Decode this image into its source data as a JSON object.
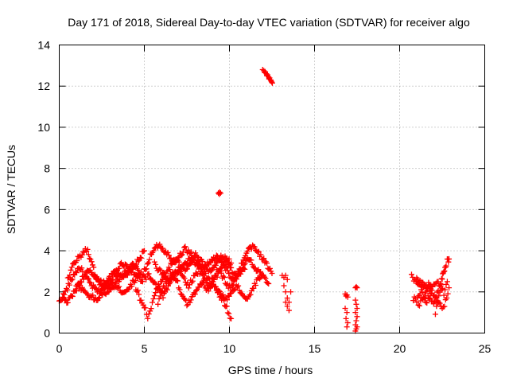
{
  "chart_data": {
    "type": "scatter",
    "title": "Day 171 of 2018, Sidereal Day-to-day VTEC variation (SDTVAR) for receiver algo",
    "xlabel": "GPS time / hours",
    "ylabel": "SDTVAR / TECUs",
    "xlim": [
      0,
      25
    ],
    "ylim": [
      0,
      14
    ],
    "xticks": [
      0,
      5,
      10,
      15,
      20,
      25
    ],
    "yticks": [
      0,
      2,
      4,
      6,
      8,
      10,
      12,
      14
    ],
    "xtick_labels": [
      "0",
      "5",
      "10",
      "15",
      "20",
      "25"
    ],
    "ytick_labels": [
      "0",
      "2",
      "4",
      "6",
      "8",
      "10",
      "12",
      "14"
    ],
    "grid": true,
    "marker": "+",
    "color": "#ff0000",
    "series": [
      {
        "name": "tracks_dense",
        "tracks": [
          [
            [
              0.0,
              1.5
            ],
            [
              0.3,
              1.9
            ],
            [
              0.6,
              2.4
            ],
            [
              0.9,
              2.9
            ],
            [
              1.2,
              3.2
            ],
            [
              1.5,
              2.8
            ],
            [
              1.9,
              2.3
            ],
            [
              2.3,
              2.0
            ],
            [
              2.7,
              2.3
            ],
            [
              3.1,
              2.7
            ],
            [
              3.5,
              2.9
            ],
            [
              3.9,
              2.7
            ],
            [
              4.3,
              3.1
            ],
            [
              4.7,
              3.6
            ],
            [
              5.0,
              4.0
            ]
          ],
          [
            [
              0.2,
              1.7
            ],
            [
              0.5,
              1.5
            ],
            [
              0.9,
              2.0
            ],
            [
              1.3,
              2.6
            ],
            [
              1.7,
              3.0
            ],
            [
              2.1,
              2.8
            ],
            [
              2.5,
              2.4
            ],
            [
              2.9,
              2.6
            ],
            [
              3.3,
              3.0
            ],
            [
              3.7,
              3.4
            ],
            [
              4.1,
              3.2
            ],
            [
              4.5,
              2.8
            ],
            [
              4.9,
              2.5
            ]
          ],
          [
            [
              0.5,
              2.6
            ],
            [
              0.8,
              3.3
            ],
            [
              1.1,
              3.6
            ],
            [
              1.4,
              3.9
            ],
            [
              1.6,
              4.1
            ],
            [
              1.9,
              3.4
            ],
            [
              2.2,
              2.6
            ],
            [
              2.5,
              2.2
            ],
            [
              2.8,
              1.9
            ],
            [
              3.1,
              2.2
            ],
            [
              3.5,
              2.6
            ],
            [
              3.9,
              3.0
            ],
            [
              4.3,
              3.4
            ],
            [
              4.7,
              3.0
            ],
            [
              5.1,
              2.6
            ]
          ],
          [
            [
              1.0,
              2.4
            ],
            [
              1.4,
              2.1
            ],
            [
              1.8,
              1.8
            ],
            [
              2.2,
              1.6
            ],
            [
              2.6,
              2.0
            ],
            [
              3.0,
              2.4
            ],
            [
              3.4,
              2.2
            ],
            [
              3.8,
              2.0
            ],
            [
              4.2,
              2.3
            ],
            [
              4.6,
              2.8
            ]
          ],
          [
            [
              4.5,
              2.2
            ],
            [
              4.8,
              1.6
            ],
            [
              5.0,
              1.3
            ],
            [
              5.2,
              0.8
            ],
            [
              5.4,
              1.2
            ],
            [
              5.6,
              1.8
            ],
            [
              5.9,
              2.4
            ],
            [
              6.2,
              2.8
            ],
            [
              6.5,
              2.5
            ],
            [
              6.9,
              2.9
            ],
            [
              7.3,
              3.3
            ],
            [
              7.7,
              3.6
            ],
            [
              8.1,
              3.3
            ],
            [
              8.5,
              3.1
            ],
            [
              8.9,
              3.5
            ],
            [
              9.3,
              3.7
            ],
            [
              9.6,
              3.4
            ],
            [
              9.9,
              3.0
            ],
            [
              10.2,
              2.6
            ],
            [
              10.5,
              2.8
            ],
            [
              10.8,
              3.2
            ],
            [
              11.1,
              3.6
            ],
            [
              11.4,
              3.3
            ],
            [
              11.7,
              3.0
            ],
            [
              12.0,
              2.7
            ],
            [
              12.3,
              2.4
            ]
          ],
          [
            [
              5.0,
              3.0
            ],
            [
              5.3,
              3.6
            ],
            [
              5.6,
              4.2
            ],
            [
              5.9,
              4.3
            ],
            [
              6.2,
              4.0
            ],
            [
              6.5,
              3.7
            ],
            [
              6.8,
              3.5
            ],
            [
              7.1,
              3.8
            ],
            [
              7.4,
              4.1
            ],
            [
              7.7,
              3.9
            ],
            [
              8.0,
              3.6
            ],
            [
              8.3,
              3.2
            ],
            [
              8.6,
              2.8
            ],
            [
              8.9,
              2.5
            ],
            [
              9.2,
              2.9
            ],
            [
              9.5,
              3.2
            ],
            [
              9.8,
              3.5
            ],
            [
              10.1,
              3.1
            ],
            [
              10.4,
              2.8
            ],
            [
              10.7,
              3.3
            ],
            [
              11.0,
              3.9
            ],
            [
              11.3,
              4.2
            ],
            [
              11.6,
              4.0
            ],
            [
              11.9,
              3.7
            ],
            [
              12.2,
              3.3
            ],
            [
              12.5,
              2.9
            ]
          ],
          [
            [
              5.2,
              2.9
            ],
            [
              5.5,
              2.6
            ],
            [
              5.8,
              2.2
            ],
            [
              6.1,
              1.8
            ],
            [
              6.4,
              2.2
            ],
            [
              6.7,
              2.8
            ],
            [
              7.0,
              3.1
            ],
            [
              7.3,
              2.7
            ],
            [
              7.6,
              2.3
            ],
            [
              7.9,
              2.7
            ],
            [
              8.2,
              3.0
            ],
            [
              8.5,
              2.7
            ],
            [
              8.8,
              2.3
            ],
            [
              9.1,
              2.6
            ],
            [
              9.4,
              3.0
            ],
            [
              9.7,
              2.6
            ],
            [
              10.0,
              2.2
            ],
            [
              10.3,
              2.5
            ],
            [
              10.6,
              2.9
            ],
            [
              10.9,
              3.1
            ]
          ],
          [
            [
              5.6,
              3.4
            ],
            [
              5.9,
              3.0
            ],
            [
              6.2,
              2.8
            ],
            [
              6.5,
              3.2
            ],
            [
              6.8,
              3.6
            ],
            [
              7.1,
              3.3
            ],
            [
              7.4,
              3.0
            ],
            [
              7.7,
              3.3
            ],
            [
              8.0,
              3.8
            ],
            [
              8.3,
              3.5
            ],
            [
              8.6,
              3.2
            ],
            [
              8.9,
              3.0
            ],
            [
              9.2,
              3.4
            ],
            [
              9.5,
              3.7
            ],
            [
              9.8,
              3.6
            ],
            [
              10.1,
              3.4
            ]
          ],
          [
            [
              5.8,
              1.5
            ],
            [
              6.0,
              2.0
            ],
            [
              6.3,
              2.5
            ],
            [
              6.6,
              2.9
            ],
            [
              6.9,
              2.6
            ],
            [
              7.2,
              1.8
            ],
            [
              7.5,
              1.4
            ],
            [
              7.8,
              1.7
            ],
            [
              8.1,
              2.2
            ],
            [
              8.4,
              2.5
            ],
            [
              8.7,
              2.1
            ],
            [
              9.0,
              2.4
            ],
            [
              9.3,
              2.0
            ],
            [
              9.6,
              1.6
            ],
            [
              9.9,
              1.1
            ],
            [
              10.1,
              0.7
            ]
          ],
          [
            [
              9.2,
              2.2
            ],
            [
              9.5,
              1.9
            ],
            [
              9.8,
              1.6
            ],
            [
              10.1,
              2.0
            ],
            [
              10.4,
              2.3
            ],
            [
              10.7,
              2.0
            ],
            [
              11.0,
              1.6
            ],
            [
              11.3,
              2.0
            ],
            [
              11.6,
              2.5
            ],
            [
              11.9,
              2.8
            ]
          ]
        ]
      },
      {
        "name": "outlier_6_8",
        "points": [
          [
            9.35,
            6.8
          ],
          [
            9.42,
            6.85
          ],
          [
            9.48,
            6.8
          ],
          [
            9.4,
            6.75
          ]
        ]
      },
      {
        "name": "outlier_12_5",
        "points": [
          [
            11.95,
            12.8
          ],
          [
            12.02,
            12.75
          ],
          [
            12.1,
            12.7
          ],
          [
            12.17,
            12.6
          ],
          [
            12.24,
            12.55
          ],
          [
            12.3,
            12.45
          ],
          [
            12.36,
            12.4
          ],
          [
            12.42,
            12.3
          ],
          [
            12.48,
            12.2
          ],
          [
            12.52,
            12.15
          ],
          [
            12.07,
            12.65
          ],
          [
            12.2,
            12.5
          ],
          [
            12.33,
            12.35
          ],
          [
            12.45,
            12.25
          ]
        ]
      },
      {
        "name": "sparse_13",
        "points": [
          [
            13.1,
            2.8
          ],
          [
            13.2,
            2.7
          ],
          [
            13.3,
            2.8
          ],
          [
            13.4,
            2.6
          ],
          [
            13.2,
            2.3
          ],
          [
            13.3,
            2.0
          ],
          [
            13.4,
            1.7
          ],
          [
            13.3,
            1.5
          ],
          [
            13.4,
            1.3
          ],
          [
            13.5,
            1.1
          ],
          [
            13.5,
            1.5
          ],
          [
            13.6,
            2.0
          ]
        ]
      },
      {
        "name": "sparse_17",
        "points": [
          [
            16.8,
            1.9
          ],
          [
            16.85,
            1.8
          ],
          [
            16.9,
            1.85
          ],
          [
            16.95,
            1.75
          ],
          [
            16.8,
            1.2
          ],
          [
            16.9,
            1.0
          ],
          [
            16.85,
            0.7
          ],
          [
            16.95,
            0.5
          ],
          [
            16.9,
            0.3
          ],
          [
            17.4,
            2.2
          ],
          [
            17.45,
            2.25
          ],
          [
            17.5,
            2.2
          ],
          [
            17.4,
            1.6
          ],
          [
            17.45,
            1.4
          ],
          [
            17.5,
            1.2
          ],
          [
            17.4,
            1.0
          ],
          [
            17.5,
            0.8
          ],
          [
            17.45,
            0.6
          ],
          [
            17.4,
            0.4
          ],
          [
            17.5,
            0.3
          ],
          [
            17.45,
            0.2
          ],
          [
            17.4,
            0.1
          ]
        ]
      },
      {
        "name": "tracks_21_23",
        "tracks": [
          [
            [
              20.7,
              2.8
            ],
            [
              20.9,
              2.5
            ],
            [
              21.1,
              2.3
            ],
            [
              21.3,
              2.5
            ],
            [
              21.5,
              2.4
            ],
            [
              21.7,
              2.2
            ],
            [
              21.9,
              2.0
            ],
            [
              22.1,
              1.8
            ],
            [
              22.3,
              1.5
            ],
            [
              22.5,
              1.2
            ],
            [
              22.7,
              1.5
            ],
            [
              22.9,
              2.2
            ]
          ],
          [
            [
              20.8,
              1.7
            ],
            [
              21.0,
              1.6
            ],
            [
              21.2,
              1.9
            ],
            [
              21.4,
              2.3
            ],
            [
              21.6,
              2.0
            ],
            [
              21.8,
              1.7
            ],
            [
              22.0,
              1.5
            ],
            [
              22.2,
              1.9
            ],
            [
              22.4,
              2.4
            ],
            [
              22.6,
              3.0
            ],
            [
              22.8,
              3.5
            ],
            [
              22.9,
              3.6
            ]
          ],
          [
            [
              21.0,
              2.7
            ],
            [
              21.2,
              2.5
            ],
            [
              21.4,
              1.8
            ],
            [
              21.6,
              1.5
            ],
            [
              21.8,
              1.9
            ],
            [
              22.0,
              2.3
            ],
            [
              22.2,
              2.6
            ],
            [
              22.4,
              2.3
            ],
            [
              22.6,
              1.9
            ],
            [
              22.8,
              2.5
            ]
          ],
          [
            [
              21.1,
              1.3
            ],
            [
              21.3,
              1.6
            ],
            [
              21.5,
              2.0
            ],
            [
              21.7,
              2.5
            ],
            [
              21.9,
              2.3
            ],
            [
              22.1,
              1.0
            ],
            [
              22.3,
              1.8
            ],
            [
              22.5,
              2.7
            ],
            [
              22.7,
              3.2
            ]
          ]
        ]
      }
    ]
  }
}
